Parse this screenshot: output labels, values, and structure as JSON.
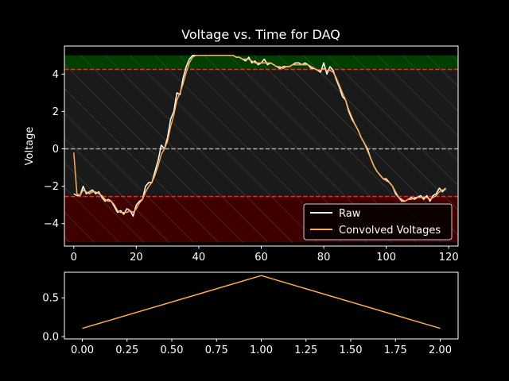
{
  "chart_data": [
    {
      "type": "line",
      "title": "Voltage vs. Time for DAQ",
      "xlabel": "",
      "ylabel": "Voltage",
      "xlim": [
        -3,
        123
      ],
      "ylim": [
        -5.2,
        5.5
      ],
      "xticks": [
        0,
        20,
        40,
        60,
        80,
        100,
        120
      ],
      "yticks": [
        -4,
        -2,
        0,
        2,
        4
      ],
      "grid": false,
      "legend": "lower-right",
      "bands": [
        {
          "y0": 4.25,
          "y1": 5.0,
          "color": "#003f00",
          "hatch": true
        },
        {
          "y0": -2.55,
          "y1": 4.25,
          "color": "#1a1a1a",
          "hatch": true
        },
        {
          "y0": -5.0,
          "y1": -2.55,
          "color": "#3f0000",
          "hatch": true
        }
      ],
      "reference_lines": [
        {
          "y": 4.25,
          "color": "#ff2020",
          "style": "dashed"
        },
        {
          "y": 0,
          "color": "#aaaaaa",
          "style": "dashed"
        },
        {
          "y": -2.55,
          "color": "#ff2020",
          "style": "dashed"
        }
      ],
      "series": [
        {
          "name": "Raw",
          "color": "#ffffff",
          "x": [
            0,
            1,
            2,
            3,
            4,
            5,
            6,
            7,
            8,
            9,
            10,
            11,
            12,
            13,
            14,
            15,
            16,
            17,
            18,
            19,
            20,
            21,
            22,
            23,
            24,
            25,
            26,
            27,
            28,
            29,
            30,
            31,
            32,
            33,
            34,
            35,
            36,
            37,
            38,
            39,
            40,
            41,
            42,
            43,
            44,
            45,
            46,
            47,
            48,
            49,
            50,
            51,
            52,
            53,
            54,
            55,
            56,
            57,
            58,
            59,
            60,
            61,
            62,
            63,
            64,
            65,
            66,
            67,
            68,
            69,
            70,
            71,
            72,
            73,
            74,
            75,
            76,
            77,
            78,
            79,
            80,
            81,
            82,
            83,
            84,
            85,
            86,
            87,
            88,
            89,
            90,
            91,
            92,
            93,
            94,
            95,
            96,
            97,
            98,
            99,
            100,
            101,
            102,
            103,
            104,
            105,
            106,
            107,
            108,
            109,
            110,
            111,
            112,
            113,
            114,
            115,
            116,
            117,
            118,
            119
          ],
          "y": [
            -2.4,
            -2.5,
            -2.5,
            -2.0,
            -2.4,
            -2.3,
            -2.2,
            -2.4,
            -2.3,
            -2.6,
            -2.8,
            -2.7,
            -2.8,
            -3.1,
            -3.4,
            -3.3,
            -3.5,
            -3.2,
            -3.3,
            -3.6,
            -3.0,
            -2.8,
            -2.7,
            -2.0,
            -1.8,
            -1.8,
            -1.2,
            -0.6,
            0.2,
            0.0,
            0.6,
            1.6,
            2.0,
            3.0,
            2.9,
            3.8,
            4.4,
            4.8,
            5.0,
            5.0,
            5.0,
            5.0,
            5.0,
            5.0,
            5.0,
            5.0,
            5.0,
            5.0,
            5.0,
            5.0,
            5.0,
            5.0,
            4.9,
            4.9,
            4.8,
            4.7,
            4.9,
            4.6,
            4.7,
            4.5,
            4.6,
            4.8,
            4.5,
            4.6,
            4.5,
            4.4,
            4.3,
            4.4,
            4.4,
            4.4,
            4.5,
            4.6,
            4.6,
            4.5,
            4.6,
            4.5,
            4.3,
            4.3,
            4.2,
            4.1,
            4.6,
            4.0,
            4.4,
            4.2,
            3.7,
            3.3,
            2.8,
            2.6,
            2.0,
            1.6,
            1.3,
            1.0,
            0.6,
            0.3,
            0.0,
            -0.5,
            -0.9,
            -1.2,
            -1.4,
            -1.6,
            -1.6,
            -1.8,
            -2.0,
            -2.4,
            -2.6,
            -2.8,
            -2.8,
            -2.7,
            -2.6,
            -2.7,
            -2.6,
            -2.5,
            -2.7,
            -2.5,
            -2.8,
            -2.5,
            -2.4,
            -2.1,
            -2.3,
            -2.1
          ]
        },
        {
          "name": "Convolved Voltages",
          "color": "#ffaa55",
          "x": [
            0,
            1,
            2,
            3,
            4,
            5,
            6,
            7,
            8,
            9,
            10,
            11,
            12,
            13,
            14,
            15,
            16,
            17,
            18,
            19,
            20,
            21,
            22,
            23,
            24,
            25,
            26,
            27,
            28,
            29,
            30,
            31,
            32,
            33,
            34,
            35,
            36,
            37,
            38,
            39,
            40,
            41,
            42,
            43,
            44,
            45,
            46,
            47,
            48,
            49,
            50,
            51,
            52,
            53,
            54,
            55,
            56,
            57,
            58,
            59,
            60,
            61,
            62,
            63,
            64,
            65,
            66,
            67,
            68,
            69,
            70,
            71,
            72,
            73,
            74,
            75,
            76,
            77,
            78,
            79,
            80,
            81,
            82,
            83,
            84,
            85,
            86,
            87,
            88,
            89,
            90,
            91,
            92,
            93,
            94,
            95,
            96,
            97,
            98,
            99,
            100,
            101,
            102,
            103,
            104,
            105,
            106,
            107,
            108,
            109,
            110,
            111,
            112,
            113,
            114,
            115,
            116,
            117,
            118,
            119
          ],
          "y": [
            -0.2,
            -2.4,
            -2.5,
            -2.2,
            -2.3,
            -2.4,
            -2.3,
            -2.3,
            -2.4,
            -2.5,
            -2.7,
            -2.8,
            -2.8,
            -3.0,
            -3.3,
            -3.4,
            -3.4,
            -3.4,
            -3.3,
            -3.4,
            -3.2,
            -2.9,
            -2.7,
            -2.3,
            -2.0,
            -1.8,
            -1.4,
            -0.9,
            -0.3,
            0.0,
            0.4,
            1.2,
            1.8,
            2.6,
            3.0,
            3.5,
            4.1,
            4.6,
            4.9,
            5.0,
            5.0,
            5.0,
            5.0,
            5.0,
            5.0,
            5.0,
            5.0,
            5.0,
            5.0,
            5.0,
            5.0,
            5.0,
            4.9,
            4.9,
            4.8,
            4.8,
            4.8,
            4.7,
            4.6,
            4.6,
            4.6,
            4.6,
            4.6,
            4.6,
            4.5,
            4.4,
            4.4,
            4.3,
            4.4,
            4.4,
            4.5,
            4.5,
            4.5,
            4.5,
            4.5,
            4.5,
            4.4,
            4.3,
            4.2,
            4.2,
            4.3,
            4.2,
            4.2,
            4.1,
            3.8,
            3.4,
            3.0,
            2.6,
            2.1,
            1.7,
            1.3,
            1.0,
            0.6,
            0.3,
            -0.1,
            -0.5,
            -0.9,
            -1.2,
            -1.4,
            -1.6,
            -1.7,
            -1.8,
            -2.0,
            -2.3,
            -2.6,
            -2.7,
            -2.8,
            -2.7,
            -2.7,
            -2.6,
            -2.6,
            -2.6,
            -2.6,
            -2.6,
            -2.7,
            -2.6,
            -2.5,
            -2.3,
            -2.2,
            -2.2
          ]
        }
      ]
    },
    {
      "type": "line",
      "title": "",
      "xlabel": "",
      "ylabel": "",
      "xlim": [
        -0.1,
        2.1
      ],
      "ylim": [
        -0.03,
        0.83
      ],
      "xticks": [
        0.0,
        0.25,
        0.5,
        0.75,
        1.0,
        1.25,
        1.5,
        1.75,
        2.0
      ],
      "xtick_labels": [
        "0.00",
        "0.25",
        "0.50",
        "0.75",
        "1.00",
        "1.25",
        "1.50",
        "1.75",
        "2.00"
      ],
      "yticks": [
        0.0,
        0.5
      ],
      "ytick_labels": [
        "0.0",
        "0.5"
      ],
      "grid": false,
      "series": [
        {
          "name": "",
          "color": "#ffaa55",
          "x": [
            0,
            1,
            2
          ],
          "y": [
            0.1065,
            0.787,
            0.1065
          ]
        }
      ]
    }
  ]
}
